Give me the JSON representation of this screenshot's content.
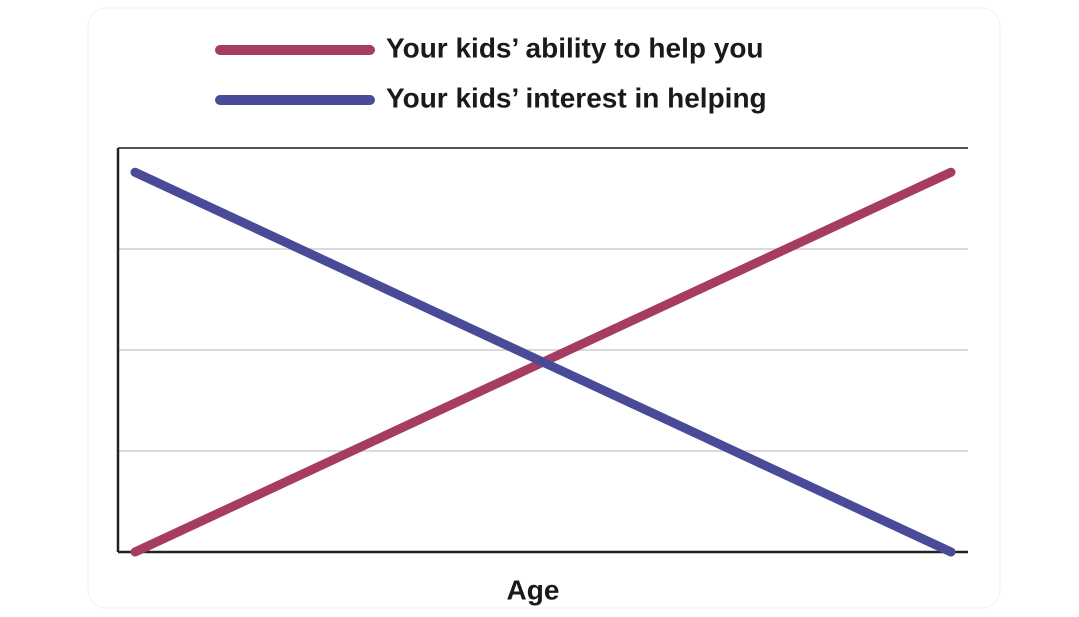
{
  "chart_data": {
    "type": "line",
    "x_label": "Age",
    "categories": [
      null,
      null
    ],
    "series": [
      {
        "name": "Your kids’ ability to help you",
        "color": "#a63c62",
        "values": [
          0,
          3.76
        ]
      },
      {
        "name": "Your kids’ interest in helping",
        "color": "#4a4b98",
        "values": [
          3.76,
          0
        ]
      }
    ],
    "ylim": [
      0,
      4
    ],
    "yticks": [
      1,
      2,
      3
    ],
    "grid": true
  }
}
